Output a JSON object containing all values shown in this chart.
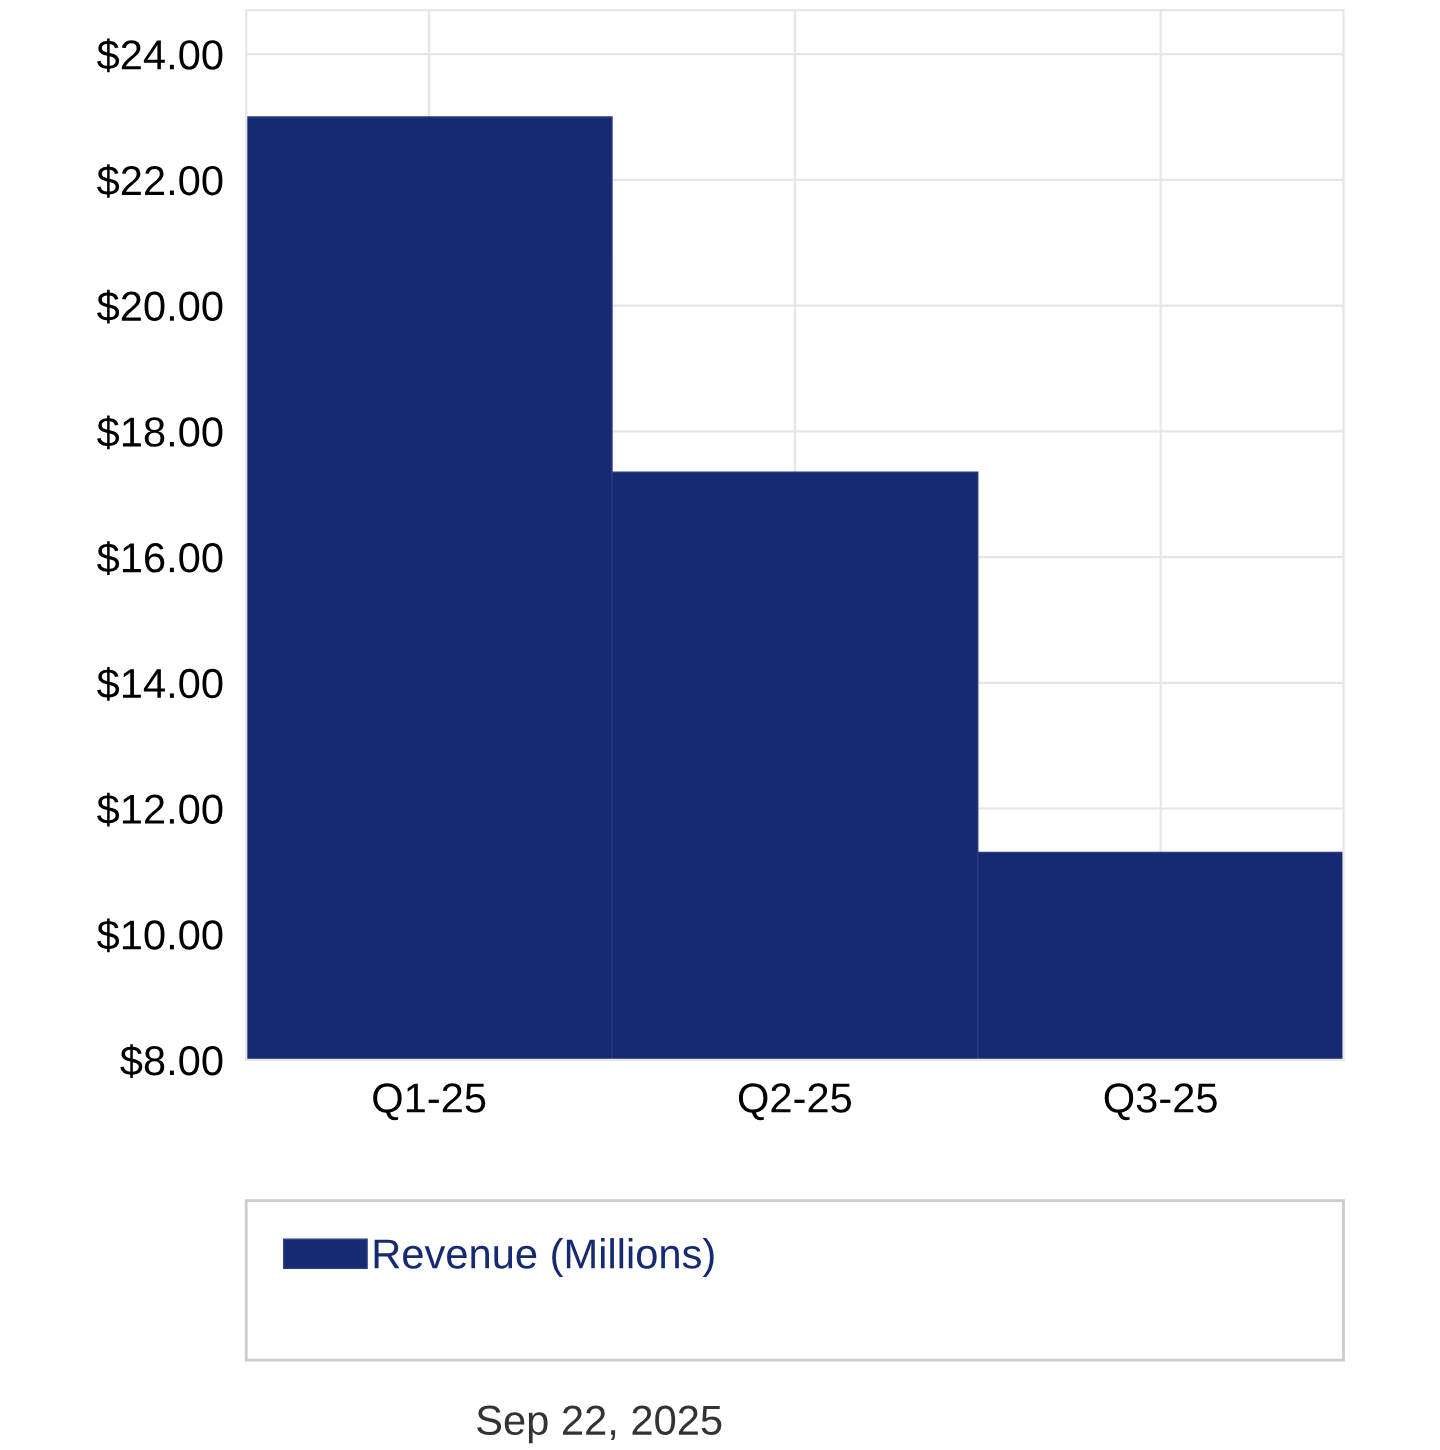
{
  "chart_data": {
    "type": "bar",
    "categories": [
      "Q1-25",
      "Q2-25",
      "Q3-25"
    ],
    "series": [
      {
        "name": "Revenue (Millions)",
        "color": "#152a72",
        "values": [
          23.0,
          17.35,
          11.3
        ]
      }
    ],
    "ylim": [
      8,
      24.7
    ],
    "yticks": [
      {
        "value": 8,
        "label": "$8.00"
      },
      {
        "value": 10,
        "label": "$10.00"
      },
      {
        "value": 12,
        "label": "$12.00"
      },
      {
        "value": 14,
        "label": "$14.00"
      },
      {
        "value": 16,
        "label": "$16.00"
      },
      {
        "value": 18,
        "label": "$18.00"
      },
      {
        "value": 20,
        "label": "$20.00"
      },
      {
        "value": 22,
        "label": "$22.00"
      },
      {
        "value": 24,
        "label": "$24.00"
      }
    ],
    "grid": true,
    "legend": "bottom",
    "annotations": [
      "Sep 22, 2025"
    ]
  }
}
